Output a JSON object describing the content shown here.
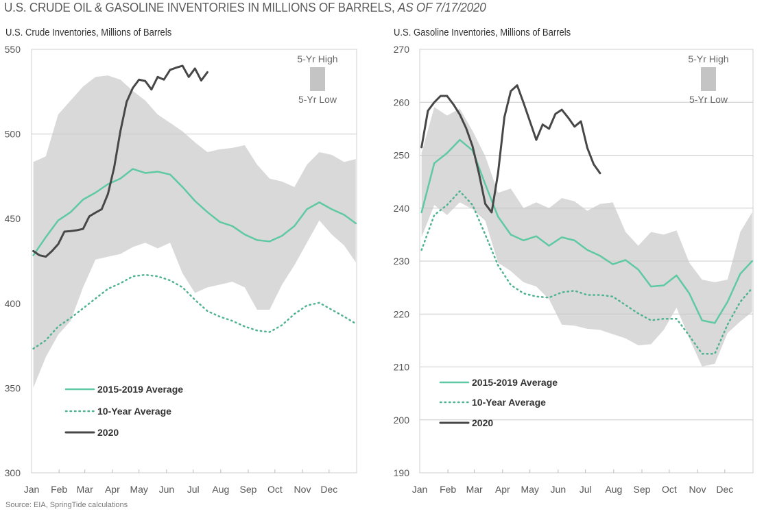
{
  "title": {
    "main": "U.S. CRUDE OIL & GASOLINE INVENTORIES IN MILLIONS OF BARRELS,",
    "asof": "AS OF 7/17/2020"
  },
  "source": "Source: EIA, SpringTide calculations",
  "colors": {
    "five_year_avg": "#5ec9a2",
    "ten_year_avg": "#4fb38f",
    "y2020": "#474747",
    "band": "#d9d9d9",
    "grid": "#c8c8c8"
  },
  "chart_data": [
    {
      "type": "area",
      "title": "U.S. Crude Inventories, Millions of Barrels",
      "xlabel": "",
      "ylabel": "",
      "ylim": [
        300,
        550
      ],
      "yticks": [
        "550",
        "500",
        "450",
        "400",
        "350",
        "300"
      ],
      "gridlines": [
        500
      ],
      "xticks": [
        "Jan",
        "Feb",
        "Mar",
        "Apr",
        "May",
        "Jun",
        "Jul",
        "Aug",
        "Sep",
        "Oct",
        "Nov",
        "Dec"
      ],
      "band_legend": {
        "high": "5-Yr High",
        "low": "5-Yr Low"
      },
      "legend_placement": "bottom-left",
      "x": [
        "01-03",
        "01-17",
        "01-31",
        "02-14",
        "02-28",
        "03-13",
        "03-27",
        "04-10",
        "04-24",
        "05-08",
        "05-22",
        "06-05",
        "06-19",
        "07-03",
        "07-17",
        "07-31",
        "08-14",
        "08-28",
        "09-11",
        "09-25",
        "10-09",
        "10-23",
        "11-06",
        "11-20",
        "12-04",
        "12-18",
        "12-31"
      ],
      "band_high": [
        483.5,
        486.8,
        511.5,
        519.8,
        528,
        533.7,
        534.6,
        532.1,
        525.5,
        519.8,
        511.5,
        506.6,
        501.6,
        495.1,
        489.3,
        491,
        491.8,
        493.4,
        481.9,
        473.7,
        472,
        468.7,
        481.9,
        489.3,
        487.7,
        483.5,
        485.2
      ],
      "band_low": [
        350.2,
        368.3,
        381.5,
        389.7,
        409.5,
        425.9,
        427.6,
        429.2,
        433.3,
        435.8,
        432.5,
        435.8,
        417.7,
        406.2,
        409.5,
        411.1,
        412.8,
        409.5,
        396.3,
        396.3,
        411.1,
        422.6,
        435.8,
        449,
        440.7,
        434.2,
        424.3
      ],
      "series": [
        {
          "name": "2015-2019 Average",
          "style": "solid",
          "values": [
            428.4,
            439.1,
            449,
            453.9,
            461.3,
            465.4,
            470.4,
            473.7,
            479.4,
            477,
            477.8,
            476.1,
            468.7,
            460.5,
            453.9,
            448.1,
            445.7,
            440.7,
            437.4,
            436.6,
            439.9,
            445.7,
            455.6,
            459.7,
            455.6,
            452.3,
            447.3
          ]
        },
        {
          "name": "10-Year Average",
          "style": "dotted",
          "values": [
            373.3,
            378.2,
            386.4,
            391.4,
            397.1,
            402.9,
            408.6,
            411.9,
            416,
            416.9,
            416,
            413.6,
            409.5,
            402.1,
            395.5,
            392.2,
            389.7,
            386.4,
            384,
            383.1,
            387.2,
            393.8,
            398.8,
            400.4,
            396.3,
            392.2,
            388.1
          ]
        },
        {
          "name": "2020",
          "style": "bold",
          "x": [
            "01-03",
            "01-10",
            "01-17",
            "01-24",
            "01-31",
            "02-07",
            "02-14",
            "02-21",
            "02-28",
            "03-06",
            "03-13",
            "03-20",
            "03-27",
            "04-03",
            "04-10",
            "04-17",
            "04-24",
            "05-01",
            "05-08",
            "05-15",
            "05-22",
            "05-29",
            "06-05",
            "06-12",
            "06-19",
            "06-26",
            "07-03",
            "07-10",
            "07-17"
          ],
          "values": [
            430.9,
            428.4,
            427.6,
            430.9,
            435,
            442.4,
            442.7,
            443.2,
            444,
            451.4,
            453.6,
            455.6,
            464.6,
            480.2,
            501.6,
            518.9,
            527.2,
            532.1,
            531.3,
            526.3,
            533.7,
            532.1,
            537.9,
            539.2,
            540.3,
            533.7,
            538.7,
            531.6,
            536.5
          ]
        }
      ]
    },
    {
      "type": "area",
      "title": "U.S. Gasoline Inventories, Millions of Barrels",
      "xlabel": "",
      "ylabel": "",
      "ylim": [
        190,
        270
      ],
      "yticks": [
        "270",
        "260",
        "250",
        "240",
        "230",
        "220",
        "210",
        "200",
        "190"
      ],
      "gridlines": [
        260,
        250,
        240,
        230,
        220,
        210,
        200
      ],
      "xticks": [
        "Jan",
        "Feb",
        "Mar",
        "Apr",
        "May",
        "Jun",
        "Jul",
        "Aug",
        "Sep",
        "Oct",
        "Nov",
        "Dec"
      ],
      "band_legend": {
        "high": "5-Yr High",
        "low": "5-Yr Low"
      },
      "legend_placement": "bottom-left",
      "x": [
        "01-03",
        "01-17",
        "01-31",
        "02-14",
        "02-28",
        "03-13",
        "03-27",
        "04-10",
        "04-24",
        "05-08",
        "05-22",
        "06-05",
        "06-19",
        "07-03",
        "07-17",
        "07-31",
        "08-14",
        "08-28",
        "09-11",
        "09-25",
        "10-09",
        "10-23",
        "11-06",
        "11-20",
        "12-04",
        "12-18",
        "12-31"
      ],
      "band_high": [
        250.4,
        259.1,
        257.5,
        258.8,
        254.6,
        249.8,
        242.9,
        243.7,
        240,
        241.1,
        240,
        241.9,
        241.3,
        239.5,
        240.8,
        241.1,
        235.5,
        232.9,
        235.5,
        235,
        235.8,
        229.7,
        226.5,
        226,
        226.5,
        235.5,
        239.2
      ],
      "band_low": [
        234.5,
        240.6,
        238.7,
        241.1,
        239.8,
        237.6,
        229.7,
        228.1,
        226,
        225.2,
        222.8,
        218,
        217.8,
        217.2,
        217,
        216.2,
        215.4,
        214.1,
        214.3,
        217,
        221.2,
        215.4,
        210.1,
        210.6,
        216.4,
        218.6,
        220.4
      ],
      "series": [
        {
          "name": "2015-2019 Average",
          "style": "solid",
          "values": [
            239.2,
            248.5,
            250.4,
            252.9,
            250.9,
            244.5,
            238.4,
            235,
            233.9,
            234.7,
            232.9,
            234.5,
            233.9,
            232.1,
            231,
            229.4,
            230.2,
            228.4,
            225.2,
            225.4,
            227.3,
            223.9,
            218.8,
            218.3,
            222.3,
            227.6,
            230
          ]
        },
        {
          "name": "10-Year Average",
          "style": "dotted",
          "values": [
            232.1,
            238.7,
            240.6,
            243.2,
            240.6,
            235,
            229.2,
            225.5,
            223.9,
            223.3,
            223.1,
            224.1,
            224.4,
            223.6,
            223.6,
            223.3,
            221.7,
            220.1,
            218.8,
            219.1,
            219.1,
            215.9,
            212.5,
            212.5,
            218,
            222.3,
            224.9
          ]
        },
        {
          "name": "2020",
          "style": "bold",
          "x": [
            "01-03",
            "01-10",
            "01-17",
            "01-24",
            "01-31",
            "02-07",
            "02-14",
            "02-21",
            "02-28",
            "03-06",
            "03-13",
            "03-20",
            "03-27",
            "04-03",
            "04-10",
            "04-17",
            "04-24",
            "05-01",
            "05-08",
            "05-15",
            "05-22",
            "05-29",
            "06-05",
            "06-12",
            "06-19",
            "06-26",
            "07-03",
            "07-10",
            "07-17"
          ],
          "values": [
            251.5,
            258.4,
            260,
            261.2,
            261.2,
            259.6,
            257.7,
            255.1,
            251.7,
            246.6,
            240.8,
            239.2,
            246.6,
            257.2,
            262.1,
            263.2,
            259.9,
            256.4,
            252.9,
            255.8,
            255,
            257.8,
            258.6,
            257.1,
            255.4,
            256.4,
            251.4,
            248.3,
            246.6
          ]
        }
      ]
    }
  ]
}
